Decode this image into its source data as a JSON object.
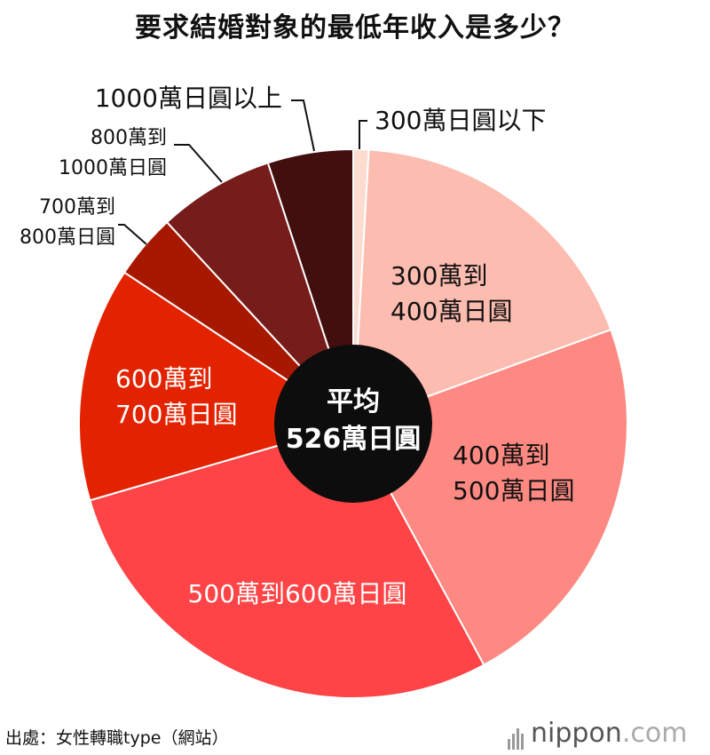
{
  "title": "要求結婚對象的最低年收入是多少？",
  "source": "出處：女性轉職type（網站）",
  "logo": {
    "main": "nippon",
    "suffix": ".com"
  },
  "center": {
    "line1": "平均",
    "line2": "526萬日圓"
  },
  "chart_data": {
    "type": "pie",
    "title": "要求結婚對象的最低年收入是多少？",
    "start": "12 o'clock, clockwise",
    "slices": [
      {
        "label": [
          "300萬日圓以下"
        ],
        "value": 0.9,
        "color": "#fcdcd0"
      },
      {
        "label": [
          "300萬到",
          "400萬日圓"
        ],
        "value": 18.4,
        "color": "#fdbcb0"
      },
      {
        "label": [
          "400萬到",
          "500萬日圓"
        ],
        "value": 22.5,
        "color": "#fd8982"
      },
      {
        "label": [
          "500萬到600萬日圓"
        ],
        "value": 28.2,
        "color": "#fe4446"
      },
      {
        "label": [
          "600萬到",
          "700萬日圓"
        ],
        "value": 13.7,
        "color": "#e32300"
      },
      {
        "label": [
          "700萬到",
          "800萬日圓"
        ],
        "value": 3.8,
        "color": "#a71800"
      },
      {
        "label": [
          "800萬到",
          "1000萬日圓"
        ],
        "value": 6.8,
        "color": "#761d1b"
      },
      {
        "label": [
          "1000萬日圓以上"
        ],
        "value": 5.0,
        "color": "#420f0f"
      }
    ]
  }
}
